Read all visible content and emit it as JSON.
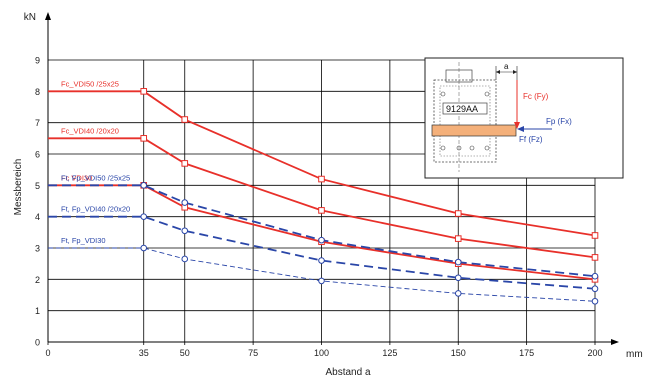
{
  "chart_data": {
    "type": "line",
    "y_unit": "kN",
    "x_unit": "mm",
    "ylabel": "Messbereich",
    "xlabel": "Abstand a",
    "xlim": [
      0,
      200
    ],
    "ylim": [
      0,
      9
    ],
    "x_ticks": [
      0,
      35,
      50,
      75,
      100,
      125,
      150,
      175,
      200
    ],
    "y_ticks": [
      0,
      1,
      2,
      3,
      4,
      5,
      6,
      7,
      8,
      9
    ],
    "grid": true,
    "series": [
      {
        "name": "Fc_VDI50 /25x25",
        "color": "#e8302a",
        "style": "solid",
        "marker": "square",
        "x": [
          0,
          35,
          50,
          100,
          150,
          200
        ],
        "y": [
          8.0,
          8.0,
          7.1,
          5.2,
          4.1,
          3.4
        ]
      },
      {
        "name": "Fc_VDI40 /20x20",
        "color": "#e8302a",
        "style": "solid",
        "marker": "square",
        "x": [
          0,
          35,
          50,
          100,
          150,
          200
        ],
        "y": [
          6.5,
          6.5,
          5.7,
          4.2,
          3.3,
          2.7
        ]
      },
      {
        "name": "Fc VDI30",
        "color": "#e8302a",
        "style": "solid",
        "marker": "square",
        "x": [
          0,
          35,
          50,
          100,
          150,
          200
        ],
        "y": [
          5.0,
          5.0,
          4.3,
          3.2,
          2.5,
          2.0
        ]
      },
      {
        "name": "Ft, Fp_VDI50 /25x25",
        "color": "#2a46a8",
        "style": "dashed",
        "marker": "circle",
        "x": [
          0,
          35,
          50,
          100,
          150,
          200
        ],
        "y": [
          5.0,
          5.0,
          4.45,
          3.25,
          2.55,
          2.1
        ]
      },
      {
        "name": "Ft, Fp_VDI40 /20x20",
        "color": "#2a46a8",
        "style": "dashed",
        "marker": "circle",
        "x": [
          0,
          35,
          50,
          100,
          150,
          200
        ],
        "y": [
          4.0,
          4.0,
          3.55,
          2.6,
          2.05,
          1.7
        ]
      },
      {
        "name": "Ft, Fp_VDI30",
        "color": "#2a46a8",
        "style": "dashed",
        "marker": "circle",
        "x": [
          0,
          35,
          50,
          100,
          150,
          200
        ],
        "y": [
          3.0,
          3.0,
          2.65,
          1.95,
          1.55,
          1.3
        ]
      }
    ],
    "inset": {
      "label_id": "9129AA",
      "dimension": "a",
      "force_fc": "Fc (Fy)",
      "force_fp": "Fp (Fx)",
      "force_ff": "Ff (Fz)"
    }
  }
}
